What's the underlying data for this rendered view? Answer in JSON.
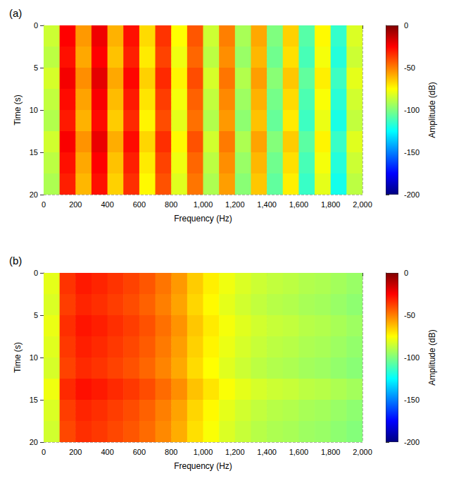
{
  "chart_data": [
    {
      "type": "heatmap",
      "title": "(a)",
      "x_label": "Frequency (Hz)",
      "y_label": "Time (s)",
      "z_label": "Amplitude (dB)",
      "xlim": [
        0,
        2000
      ],
      "xticks": [
        0,
        200,
        400,
        600,
        800,
        1000,
        1200,
        1400,
        1600,
        1800,
        2000
      ],
      "ylim": [
        0,
        20
      ],
      "yticks": [
        0,
        5,
        10,
        15,
        20
      ],
      "zlim": [
        -200,
        0
      ],
      "zticks": [
        -200,
        -150,
        -100,
        -50,
        0
      ],
      "grid": true,
      "x": [
        50,
        150,
        250,
        350,
        450,
        550,
        650,
        750,
        850,
        950,
        1050,
        1150,
        1250,
        1350,
        1450,
        1550,
        1650,
        1750,
        1850,
        1950
      ],
      "y": [
        1.25,
        3.75,
        6.25,
        8.75,
        11.25,
        13.75,
        16.25,
        18.75
      ],
      "values": [
        [
          -85,
          -25,
          -55,
          -22,
          -60,
          -28,
          -68,
          -35,
          -75,
          -42,
          -85,
          -50,
          -92,
          -58,
          -100,
          -66,
          -108,
          -74,
          -115,
          -82
        ],
        [
          -88,
          -28,
          -58,
          -25,
          -63,
          -31,
          -71,
          -38,
          -78,
          -45,
          -88,
          -53,
          -95,
          -61,
          -103,
          -69,
          -111,
          -77,
          -118,
          -85
        ],
        [
          -83,
          -23,
          -53,
          -20,
          -58,
          -26,
          -66,
          -33,
          -73,
          -40,
          -83,
          -48,
          -90,
          -56,
          -98,
          -64,
          -106,
          -72,
          -113,
          -80
        ],
        [
          -87,
          -27,
          -57,
          -24,
          -62,
          -30,
          -70,
          -37,
          -77,
          -44,
          -87,
          -52,
          -94,
          -60,
          -102,
          -68,
          -110,
          -76,
          -117,
          -84
        ],
        [
          -90,
          -30,
          -60,
          -27,
          -65,
          -33,
          -73,
          -40,
          -80,
          -47,
          -90,
          -55,
          -97,
          -63,
          -105,
          -71,
          -113,
          -79,
          -120,
          -87
        ],
        [
          -84,
          -24,
          -54,
          -21,
          -59,
          -27,
          -67,
          -34,
          -74,
          -41,
          -84,
          -49,
          -91,
          -57,
          -99,
          -65,
          -107,
          -73,
          -114,
          -81
        ],
        [
          -88,
          -28,
          -58,
          -25,
          -63,
          -31,
          -71,
          -38,
          -78,
          -45,
          -88,
          -53,
          -95,
          -61,
          -103,
          -69,
          -111,
          -77,
          -118,
          -85
        ],
        [
          -91,
          -31,
          -61,
          -28,
          -66,
          -34,
          -74,
          -41,
          -81,
          -48,
          -91,
          -56,
          -98,
          -64,
          -106,
          -72,
          -114,
          -80,
          -121,
          -88
        ]
      ]
    },
    {
      "type": "heatmap",
      "title": "(b)",
      "x_label": "Frequency (Hz)",
      "y_label": "Time (s)",
      "z_label": "Amplitude (dB)",
      "xlim": [
        0,
        2000
      ],
      "xticks": [
        0,
        200,
        400,
        600,
        800,
        1000,
        1200,
        1400,
        1600,
        1800,
        2000
      ],
      "ylim": [
        0,
        20
      ],
      "yticks": [
        0,
        5,
        10,
        15,
        20
      ],
      "zlim": [
        -200,
        0
      ],
      "zticks": [
        -200,
        -150,
        -100,
        -50,
        0
      ],
      "grid": true,
      "x": [
        50,
        150,
        250,
        350,
        450,
        550,
        650,
        750,
        850,
        950,
        1050,
        1150,
        1250,
        1350,
        1450,
        1550,
        1650,
        1750,
        1850,
        1950
      ],
      "y": [
        1.25,
        3.75,
        6.25,
        8.75,
        11.25,
        13.75,
        16.25,
        18.75
      ],
      "values": [
        [
          -80,
          -35,
          -30,
          -32,
          -35,
          -38,
          -42,
          -48,
          -55,
          -65,
          -72,
          -78,
          -82,
          -85,
          -87,
          -88,
          -90,
          -91,
          -93,
          -95
        ],
        [
          -82,
          -37,
          -32,
          -34,
          -37,
          -40,
          -44,
          -50,
          -57,
          -67,
          -74,
          -80,
          -84,
          -87,
          -89,
          -90,
          -92,
          -93,
          -95,
          -97
        ],
        [
          -79,
          -34,
          -29,
          -31,
          -34,
          -37,
          -41,
          -47,
          -54,
          -64,
          -71,
          -77,
          -81,
          -84,
          -86,
          -87,
          -89,
          -90,
          -92,
          -94
        ],
        [
          -81,
          -36,
          -31,
          -33,
          -36,
          -39,
          -43,
          -49,
          -56,
          -66,
          -73,
          -79,
          -83,
          -86,
          -88,
          -89,
          -91,
          -92,
          -94,
          -96
        ],
        [
          -83,
          -38,
          -33,
          -35,
          -38,
          -41,
          -45,
          -51,
          -58,
          -68,
          -75,
          -81,
          -85,
          -88,
          -90,
          -91,
          -93,
          -94,
          -96,
          -98
        ],
        [
          -78,
          -33,
          -28,
          -30,
          -33,
          -36,
          -40,
          -46,
          -53,
          -63,
          -70,
          -76,
          -80,
          -83,
          -85,
          -86,
          -88,
          -89,
          -91,
          -93
        ],
        [
          -82,
          -37,
          -32,
          -34,
          -37,
          -40,
          -44,
          -50,
          -57,
          -67,
          -74,
          -80,
          -84,
          -87,
          -89,
          -90,
          -92,
          -93,
          -95,
          -97
        ],
        [
          -84,
          -39,
          -34,
          -36,
          -39,
          -42,
          -46,
          -52,
          -59,
          -69,
          -76,
          -82,
          -86,
          -89,
          -91,
          -92,
          -94,
          -95,
          -97,
          -99
        ]
      ]
    }
  ]
}
